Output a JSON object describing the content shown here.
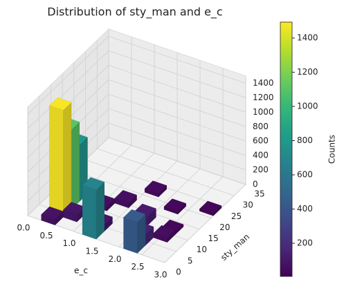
{
  "chart_data": {
    "type": "bar3d",
    "title": "Distribution of sty_man and e_c",
    "xlabel": "e_c",
    "ylabel": "sty_man",
    "colorbar_label": "Counts",
    "colormap": "viridis",
    "x": [
      0.3,
      0.3,
      0.3,
      0.3,
      1.2,
      1.2,
      2.1,
      2.1,
      0.9,
      1.2,
      1.5,
      1.8,
      2.1,
      2.4,
      2.7,
      0.6,
      2.4
    ],
    "y": [
      3.5,
      7,
      10.5,
      0,
      0,
      3.5,
      0,
      3.5,
      10.5,
      14,
      21,
      10.5,
      17.5,
      7,
      21,
      3.5,
      10.5
    ],
    "values": [
      1480,
      1100,
      780,
      80,
      680,
      90,
      430,
      150,
      60,
      70,
      50,
      120,
      40,
      60,
      30,
      100,
      30
    ],
    "dx": 0.3,
    "dy": 3.5,
    "xlim": [
      0,
      3
    ],
    "ylim": [
      0,
      35
    ],
    "zlim": [
      0,
      1500
    ],
    "clim": [
      6,
      1493
    ],
    "xticks": [
      {
        "value": 0,
        "label": "0.0"
      },
      0.5,
      {
        "value": 1,
        "label": "1.0"
      },
      1.5,
      {
        "value": 2,
        "label": "2.0"
      },
      2.5,
      {
        "value": 3,
        "label": "3.0"
      }
    ],
    "yticks": [
      0,
      5,
      10,
      15,
      20,
      25,
      30,
      35
    ],
    "zticks": [
      0,
      200,
      400,
      600,
      800,
      1000,
      1200,
      1400
    ],
    "cticks": [
      200,
      400,
      600,
      800,
      1000,
      1200,
      1400
    ],
    "grid": true
  }
}
